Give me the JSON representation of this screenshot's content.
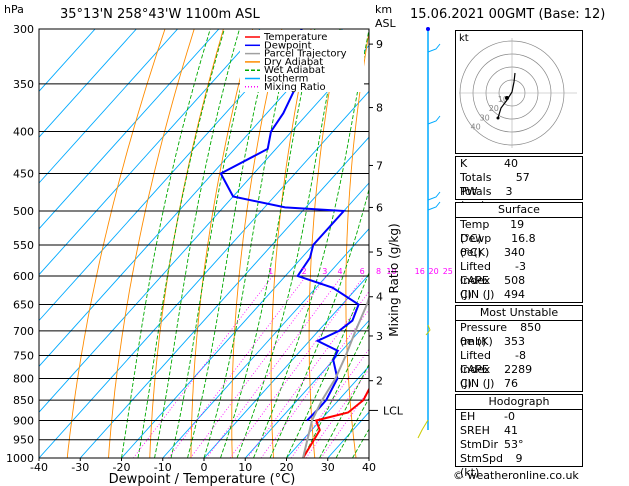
{
  "header": {
    "pressure_unit": "hPa",
    "location": "35°13'N  258°43'W  1100m  ASL",
    "km_label": "km",
    "asl_label": "ASL",
    "datetime": "15.06.2021  00GMT  (Base: 12)"
  },
  "legend": [
    "Temperature",
    "Dewpoint",
    "Parcel Trajectory",
    "Dry Adiabat",
    "Wet Adiabat",
    "Isotherm",
    "Mixing Ratio"
  ],
  "colors": {
    "temperature": "#ff0000",
    "dewpoint": "#0000ff",
    "parcel": "#a0a0a0",
    "dry_adiabat": "#ff8c00",
    "wet_adiabat": "#00aa00",
    "isotherm": "#00aaff",
    "mixing_ratio": "#ff00ff"
  },
  "chart_data": {
    "type": "line",
    "xlabel": "Dewpoint / Temperature (°C)",
    "ylabel_right": "Mixing Ratio (g/kg)",
    "xlim": [
      -40,
      40
    ],
    "ylim": [
      1000,
      300
    ],
    "pressure_ticks": [
      300,
      350,
      400,
      450,
      500,
      550,
      600,
      650,
      700,
      750,
      800,
      850,
      900,
      950,
      1000
    ],
    "temp_ticks": [
      -40,
      -30,
      -20,
      -10,
      0,
      10,
      20,
      30,
      40
    ],
    "km_ticks": [
      {
        "km": "9",
        "p": 313
      },
      {
        "km": "8",
        "p": 374
      },
      {
        "km": "7",
        "p": 440
      },
      {
        "km": "6",
        "p": 495
      },
      {
        "km": "5",
        "p": 561
      },
      {
        "km": "4",
        "p": 636
      },
      {
        "km": "3",
        "p": 710
      },
      {
        "km": "2",
        "p": 805
      }
    ],
    "lcl_p": 875,
    "lcl_label": "LCL",
    "mixing_ratio_labels": [
      {
        "v": "1",
        "t": -6
      },
      {
        "v": "2",
        "t": 2
      },
      {
        "v": "3",
        "t": 7
      },
      {
        "v": "4",
        "t": 10.5
      },
      {
        "v": "6",
        "t": 16
      },
      {
        "v": "8",
        "t": 20.5
      },
      {
        "v": "10",
        "t": 24
      },
      {
        "v": "16",
        "t": 31
      },
      {
        "v": "20",
        "t": 35
      },
      {
        "v": "25",
        "t": 38.5
      }
    ],
    "series": [
      {
        "name": "Temperature",
        "points": [
          [
            1000,
            24
          ],
          [
            925,
            22
          ],
          [
            900,
            19
          ],
          [
            880,
            25
          ],
          [
            850,
            26
          ],
          [
            800,
            24
          ],
          [
            750,
            20
          ],
          [
            700,
            14
          ],
          [
            650,
            9
          ],
          [
            600,
            3
          ],
          [
            550,
            -2
          ],
          [
            500,
            -9
          ],
          [
            450,
            -14
          ],
          [
            400,
            -21
          ],
          [
            350,
            -30
          ],
          [
            320,
            -36
          ],
          [
            300,
            -40
          ]
        ]
      },
      {
        "name": "Dewpoint",
        "points": [
          [
            900,
            16.8
          ],
          [
            870,
            17
          ],
          [
            850,
            17
          ],
          [
            800,
            15
          ],
          [
            760,
            10
          ],
          [
            740,
            9
          ],
          [
            720,
            2
          ],
          [
            700,
            5
          ],
          [
            680,
            6
          ],
          [
            650,
            4
          ],
          [
            620,
            -6
          ],
          [
            600,
            -17
          ],
          [
            570,
            -18
          ],
          [
            550,
            -20
          ],
          [
            500,
            -20
          ],
          [
            495,
            -35
          ],
          [
            480,
            -50
          ],
          [
            450,
            -58
          ],
          [
            420,
            -52
          ],
          [
            400,
            -55
          ],
          [
            380,
            -56
          ],
          [
            350,
            -59
          ],
          [
            320,
            -64
          ],
          [
            300,
            -70
          ]
        ]
      },
      {
        "name": "Parcel Trajectory",
        "points": [
          [
            1000,
            24
          ],
          [
            900,
            18
          ],
          [
            875,
            17
          ],
          [
            850,
            16
          ],
          [
            800,
            14.5
          ],
          [
            750,
            12
          ],
          [
            700,
            9
          ],
          [
            650,
            6
          ],
          [
            600,
            2
          ],
          [
            550,
            -3
          ],
          [
            500,
            -8
          ],
          [
            450,
            -14
          ],
          [
            400,
            -20
          ],
          [
            350,
            -28
          ],
          [
            300,
            -37
          ]
        ]
      }
    ]
  },
  "hodograph": {
    "unit": "kt",
    "ring_labels": [
      "10",
      "20",
      "30",
      "40"
    ]
  },
  "indices": {
    "k_label": "K",
    "k_val": "40",
    "tt_label": "Totals Totals",
    "tt_val": "57",
    "pw_label": "PW (cm)",
    "pw_val": "3",
    "surface_title": "Surface",
    "s_temp_label": "Temp (°C)",
    "s_temp_val": "19",
    "s_dewp_label": "Dewp (°C)",
    "s_dewp_val": "16.8",
    "s_theta_label": "θe(K)",
    "s_theta_val": "340",
    "s_li_label": "Lifted Index",
    "s_li_val": "-3",
    "s_cape_label": "CAPE (J)",
    "s_cape_val": "508",
    "s_cin_label": "CIN (J)",
    "s_cin_val": "494",
    "mu_title": "Most Unstable",
    "mu_p_label": "Pressure (mb)",
    "mu_p_val": "850",
    "mu_theta_label": "θe (K)",
    "mu_theta_val": "353",
    "mu_li_label": "Lifted Index",
    "mu_li_val": "-8",
    "mu_cape_label": "CAPE (J)",
    "mu_cape_val": "2289",
    "mu_cin_label": "CIN (J)",
    "mu_cin_val": "76",
    "hodo_title": "Hodograph",
    "eh_label": "EH",
    "eh_val": "-0",
    "sreh_label": "SREH",
    "sreh_val": "41",
    "stmdir_label": "StmDir",
    "stmdir_val": "53°",
    "stmspd_label": "StmSpd (kt)",
    "stmspd_val": "9"
  },
  "footer": "© weatheronline.co.uk"
}
